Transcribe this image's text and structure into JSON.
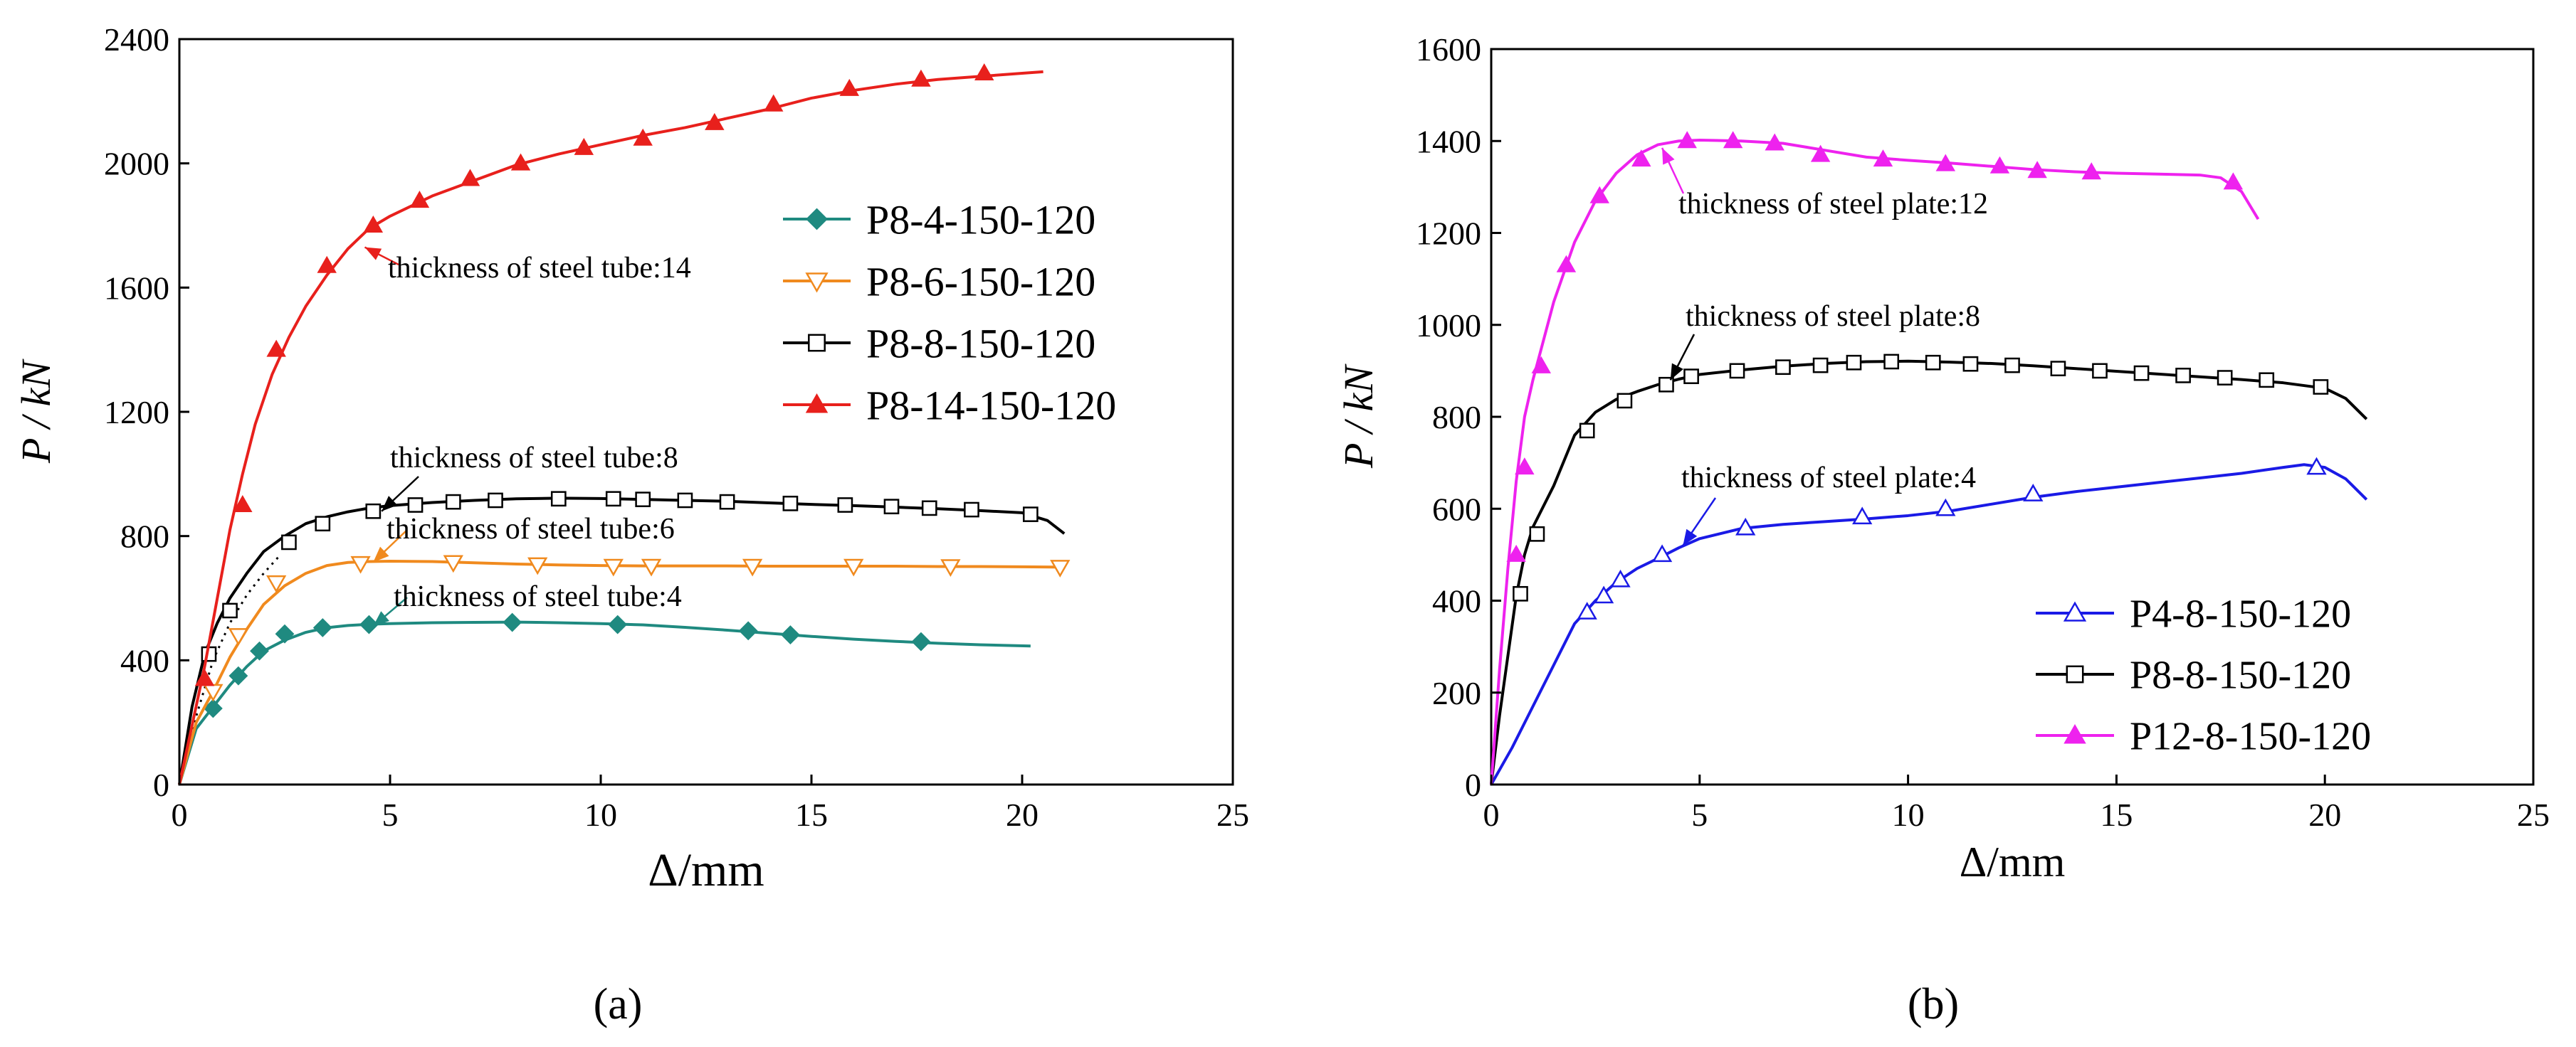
{
  "chart_data": [
    {
      "type": "line",
      "panel_label": "(a)",
      "xlabel": "Δ/mm",
      "ylabel": "P / kN",
      "xlim": [
        0,
        25
      ],
      "ylim": [
        0,
        2400
      ],
      "xticks": [
        0,
        5,
        10,
        15,
        20,
        25
      ],
      "yticks": [
        0,
        400,
        800,
        1200,
        1600,
        2000,
        2400
      ],
      "legend_position": "right",
      "series": [
        {
          "name": "P8-4-150-120",
          "color": "#1f8a80",
          "marker": "diamond-filled",
          "x": [
            0,
            0.4,
            0.8,
            1.2,
            1.6,
            2,
            2.5,
            3,
            3.5,
            4,
            4.5,
            5,
            6,
            7,
            8,
            9,
            10,
            11,
            12,
            13,
            14,
            15,
            16,
            17,
            18,
            19,
            20.2
          ],
          "y": [
            0,
            180,
            250,
            320,
            380,
            430,
            465,
            490,
            505,
            512,
            516,
            518,
            521,
            522,
            523,
            521,
            518,
            514,
            506,
            497,
            487,
            477,
            468,
            461,
            455,
            450,
            446
          ],
          "markers_x": [
            0.8,
            1.4,
            1.9,
            2.5,
            3.4,
            4.5,
            7.9,
            10.4,
            13.5,
            14.5,
            17.6
          ],
          "markers_y": [
            245,
            350,
            430,
            485,
            505,
            515,
            522,
            515,
            495,
            482,
            460
          ]
        },
        {
          "name": "P8-6-150-120",
          "color": "#f08a1e",
          "marker": "triangle-down-open",
          "x": [
            0,
            0.4,
            0.8,
            1.2,
            1.6,
            2,
            2.5,
            3,
            3.5,
            4,
            4.5,
            5,
            6,
            7,
            8,
            9,
            10,
            11,
            12,
            13,
            14,
            15,
            16,
            17,
            18,
            19,
            20,
            21
          ],
          "y": [
            0,
            200,
            300,
            410,
            500,
            580,
            640,
            680,
            705,
            715,
            718,
            719,
            718,
            714,
            710,
            707,
            705,
            704,
            704,
            704,
            703,
            703,
            703,
            703,
            702,
            702,
            701,
            700
          ],
          "markers_x": [
            0.8,
            1.4,
            2.3,
            4.3,
            6.5,
            8.5,
            10.3,
            11.2,
            13.6,
            16,
            18.3,
            20.9
          ],
          "markers_y": [
            300,
            480,
            650,
            712,
            715,
            708,
            703,
            703,
            703,
            703,
            702,
            700
          ]
        },
        {
          "name": "P8-8-150-120",
          "color": "#000000",
          "marker": "square-open",
          "x": [
            0,
            0.3,
            0.6,
            0.9,
            1.2,
            1.6,
            2,
            2.5,
            3,
            3.5,
            4,
            4.5,
            5,
            6,
            7,
            8,
            9,
            10,
            11,
            12,
            13,
            14,
            15,
            16,
            17,
            18,
            19,
            20,
            20.6,
            21
          ],
          "y": [
            0,
            250,
            420,
            520,
            600,
            680,
            750,
            800,
            840,
            862,
            878,
            890,
            898,
            908,
            915,
            920,
            922,
            921,
            918,
            915,
            912,
            907,
            902,
            898,
            893,
            888,
            882,
            875,
            850,
            808
          ],
          "markers_x": [
            0.7,
            1.2,
            2.6,
            3.4,
            4.6,
            5.6,
            6.5,
            7.5,
            9,
            10.3,
            11,
            12,
            13,
            14.5,
            15.8,
            16.9,
            17.8,
            18.8,
            20.2
          ],
          "markers_y": [
            420,
            560,
            780,
            840,
            880,
            900,
            910,
            915,
            920,
            920,
            918,
            915,
            910,
            905,
            900,
            895,
            890,
            885,
            870
          ]
        },
        {
          "name": "P8-14-150-120",
          "color": "#e8201c",
          "marker": "triangle-up-filled",
          "x": [
            0,
            0.3,
            0.6,
            0.9,
            1.2,
            1.5,
            1.8,
            2.2,
            2.6,
            3,
            3.5,
            4,
            4.5,
            5,
            6,
            7,
            8,
            9,
            10,
            11,
            12,
            13,
            14,
            15,
            16,
            17,
            18,
            19,
            20,
            20.5
          ],
          "y": [
            0,
            190,
            380,
            600,
            820,
            1000,
            1160,
            1320,
            1440,
            1540,
            1640,
            1725,
            1790,
            1830,
            1895,
            1945,
            1995,
            2030,
            2060,
            2090,
            2115,
            2145,
            2175,
            2210,
            2235,
            2255,
            2270,
            2280,
            2290,
            2295
          ],
          "markers_x": [
            0.6,
            1.5,
            2.3,
            3.5,
            4.6,
            5.7,
            6.9,
            8.1,
            9.6,
            11,
            12.7,
            14.1,
            15.9,
            17.6,
            19.1
          ],
          "markers_y": [
            340,
            900,
            1400,
            1670,
            1800,
            1880,
            1950,
            2000,
            2050,
            2080,
            2130,
            2190,
            2240,
            2270,
            2290
          ]
        }
      ],
      "dotted_line": {
        "x": [
          0,
          0.4,
          0.8,
          1.2,
          1.6,
          2,
          2.4
        ],
        "y": [
          0,
          220,
          400,
          520,
          610,
          680,
          740
        ]
      },
      "annotations": [
        {
          "text": "thickness of steel tube:14",
          "arrow_to": [
            4.4,
            1730
          ]
        },
        {
          "text": "thickness of steel tube:8",
          "arrow_to": [
            4.8,
            880
          ]
        },
        {
          "text": "thickness of steel tube:6",
          "arrow_to": [
            4.6,
            716
          ]
        },
        {
          "text": "thickness of steel tube:4",
          "arrow_to": [
            4.6,
            510
          ]
        }
      ]
    },
    {
      "type": "line",
      "panel_label": "(b)",
      "xlabel": "Δ/mm",
      "ylabel": "P / kN",
      "xlim": [
        0,
        25
      ],
      "ylim": [
        0,
        1600
      ],
      "xticks": [
        0,
        5,
        10,
        15,
        20,
        25
      ],
      "yticks": [
        0,
        200,
        400,
        600,
        800,
        1000,
        1200,
        1400,
        1600
      ],
      "legend_position": "bottom-right",
      "series": [
        {
          "name": "P4-8-150-120",
          "color": "#1a1ae6",
          "marker": "triangle-up-open",
          "x": [
            0,
            0.5,
            1,
            1.5,
            2,
            2.5,
            3,
            3.5,
            4,
            4.5,
            5,
            6,
            7,
            8,
            9,
            10,
            11,
            12,
            13,
            14,
            15,
            16,
            17,
            18,
            19,
            19.5,
            20,
            20.5,
            21
          ],
          "y": [
            0,
            80,
            170,
            260,
            350,
            400,
            440,
            470,
            492,
            515,
            535,
            557,
            566,
            572,
            578,
            585,
            595,
            610,
            625,
            637,
            647,
            657,
            667,
            677,
            690,
            696,
            690,
            665,
            620
          ],
          "markers_x": [
            2.3,
            2.7,
            3.1,
            4.1,
            6.1,
            8.9,
            10.9,
            13,
            19.8
          ],
          "markers_y": [
            375,
            410,
            445,
            500,
            558,
            582,
            600,
            632,
            690
          ]
        },
        {
          "name": "P8-8-150-120",
          "color": "#000000",
          "marker": "square-open",
          "x": [
            0,
            0.2,
            0.4,
            0.6,
            0.8,
            1,
            1.5,
            2,
            2.5,
            3,
            3.5,
            4,
            4.5,
            5,
            6,
            7,
            8,
            9,
            10,
            11,
            12,
            13,
            14,
            15,
            16,
            17,
            18,
            19,
            20,
            20.5,
            21
          ],
          "y": [
            0,
            150,
            280,
            410,
            500,
            560,
            650,
            760,
            810,
            838,
            855,
            870,
            882,
            892,
            902,
            910,
            916,
            920,
            921,
            919,
            916,
            911,
            905,
            899,
            893,
            887,
            881,
            874,
            862,
            840,
            795
          ],
          "markers_x": [
            0.7,
            1.1,
            2.3,
            3.2,
            4.2,
            4.8,
            5.9,
            7,
            7.9,
            8.7,
            9.6,
            10.6,
            11.5,
            12.5,
            13.6,
            14.6,
            15.6,
            16.6,
            17.6,
            18.6,
            19.9
          ],
          "markers_y": [
            415,
            545,
            770,
            835,
            870,
            888,
            900,
            908,
            912,
            918,
            920,
            918,
            915,
            912,
            905,
            900,
            895,
            890,
            885,
            880,
            865
          ]
        },
        {
          "name": "P12-8-150-120",
          "color": "#ee22ee",
          "marker": "triangle-up-filled",
          "x": [
            0,
            0.2,
            0.4,
            0.6,
            0.8,
            1,
            1.5,
            2,
            2.5,
            3,
            3.5,
            4,
            4.5,
            5,
            6,
            7,
            8,
            9,
            10,
            11,
            12,
            13,
            14,
            15,
            16,
            17,
            17.5,
            18,
            18.4
          ],
          "y": [
            0,
            250,
            470,
            660,
            800,
            880,
            1050,
            1180,
            1270,
            1330,
            1370,
            1392,
            1400,
            1402,
            1400,
            1395,
            1380,
            1365,
            1358,
            1352,
            1345,
            1338,
            1333,
            1330,
            1328,
            1326,
            1320,
            1290,
            1230
          ],
          "markers_x": [
            0.6,
            0.8,
            1.2,
            1.8,
            2.6,
            3.6,
            4.7,
            5.8,
            6.8,
            7.9,
            9.4,
            10.9,
            12.2,
            13.1,
            14.4,
            17.8
          ],
          "markers_y": [
            500,
            690,
            910,
            1130,
            1280,
            1360,
            1400,
            1400,
            1395,
            1370,
            1360,
            1350,
            1345,
            1335,
            1332,
            1310
          ]
        }
      ],
      "annotations": [
        {
          "text": "thickness of steel plate:12",
          "arrow_to": [
            4.1,
            1385
          ]
        },
        {
          "text": "thickness of steel plate:8",
          "arrow_to": [
            4.3,
            880
          ]
        },
        {
          "text": "thickness of steel plate:4",
          "arrow_to": [
            4.6,
            520
          ]
        }
      ]
    }
  ]
}
